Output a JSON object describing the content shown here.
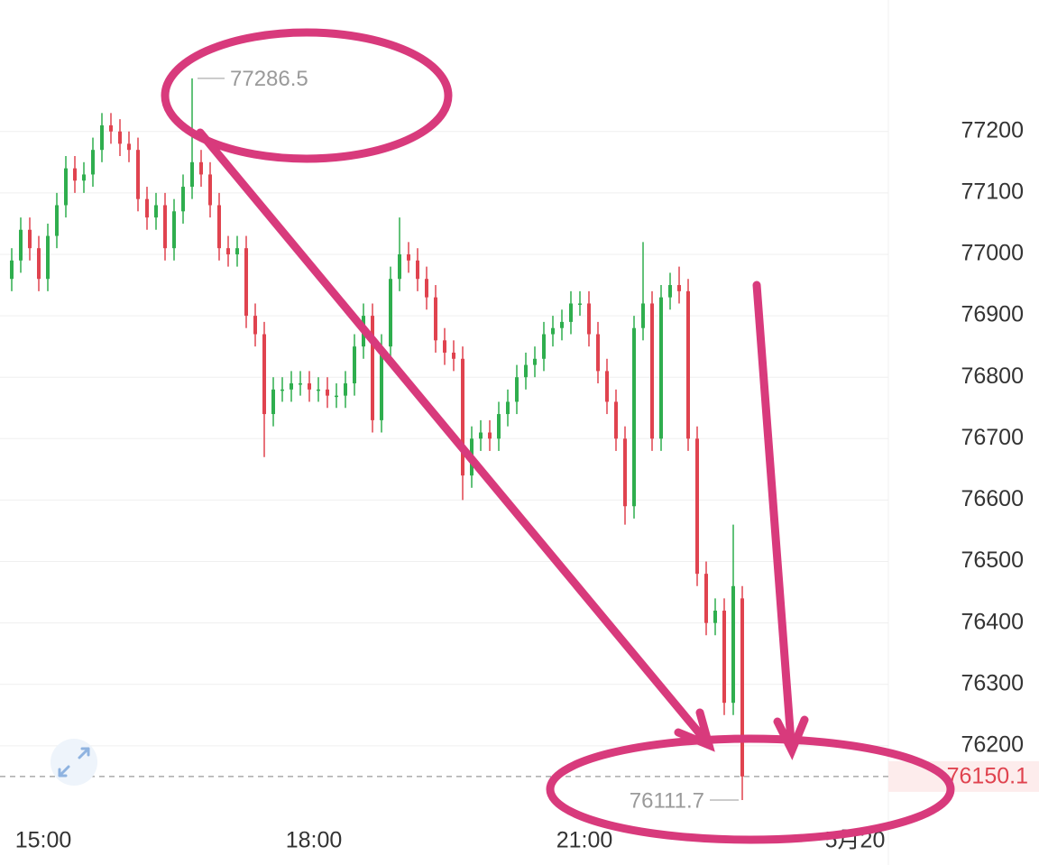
{
  "chart_data": {
    "type": "candlestick",
    "up_color": "#2fae4e",
    "down_color": "#e0434f",
    "grid": true,
    "x": [
      14.65,
      14.75,
      14.85,
      14.95,
      15.05,
      15.15,
      15.25,
      15.35,
      15.45,
      15.55,
      15.65,
      15.75,
      15.85,
      15.95,
      16.05,
      16.15,
      16.25,
      16.35,
      16.45,
      16.55,
      16.65,
      16.75,
      16.85,
      16.95,
      17.05,
      17.15,
      17.25,
      17.35,
      17.45,
      17.55,
      17.65,
      17.75,
      17.85,
      17.95,
      18.05,
      18.15,
      18.25,
      18.35,
      18.45,
      18.55,
      18.65,
      18.75,
      18.85,
      18.95,
      19.05,
      19.15,
      19.25,
      19.35,
      19.45,
      19.55,
      19.65,
      19.75,
      19.85,
      19.95,
      20.05,
      20.15,
      20.25,
      20.35,
      20.45,
      20.55,
      20.65,
      20.75,
      20.85,
      20.95,
      21.05,
      21.15,
      21.25,
      21.35,
      21.45,
      21.55,
      21.65,
      21.75,
      21.85,
      21.95,
      22.05,
      22.15,
      22.25,
      22.35,
      22.45,
      22.55,
      22.65,
      22.75
    ],
    "open": [
      76960,
      76990,
      77040,
      77010,
      76960,
      77030,
      77080,
      77140,
      77120,
      77130,
      77170,
      77210,
      77200,
      77180,
      77170,
      77090,
      77060,
      77080,
      77010,
      77070,
      77110,
      77150,
      77130,
      77080,
      77010,
      77000,
      77010,
      76900,
      76870,
      76740,
      76780,
      76780,
      76790,
      76790,
      76780,
      76780,
      76770,
      76770,
      76790,
      76850,
      76900,
      76730,
      76850,
      76960,
      77000,
      76990,
      76960,
      76930,
      76860,
      76840,
      76830,
      76640,
      76700,
      76710,
      76700,
      76740,
      76760,
      76800,
      76820,
      76830,
      76870,
      76880,
      76890,
      76920,
      76920,
      76870,
      76810,
      76760,
      76700,
      76590,
      76880,
      76920,
      76700,
      76930,
      76950,
      76940,
      76700,
      76480,
      76400,
      76420,
      76270,
      76440
    ],
    "high": [
      77010,
      77060,
      77060,
      77030,
      77050,
      77100,
      77160,
      77160,
      77150,
      77190,
      77230,
      77230,
      77220,
      77200,
      77190,
      77110,
      77100,
      77100,
      77090,
      77130,
      77286.5,
      77170,
      77150,
      77100,
      77030,
      77030,
      77030,
      76920,
      76890,
      76800,
      76800,
      76810,
      76810,
      76810,
      76800,
      76800,
      76790,
      76810,
      76870,
      76920,
      76920,
      76870,
      76980,
      77060,
      77020,
      77010,
      76980,
      76950,
      76880,
      76860,
      76850,
      76720,
      76730,
      76730,
      76760,
      76780,
      76820,
      76840,
      76850,
      76890,
      76900,
      76910,
      76940,
      76940,
      76940,
      76890,
      76830,
      76780,
      76720,
      76900,
      77020,
      76940,
      76950,
      76970,
      76980,
      76960,
      76720,
      76500,
      76440,
      76440,
      76560,
      76460
    ],
    "low": [
      76940,
      76970,
      76990,
      76940,
      76940,
      77010,
      77060,
      77100,
      77100,
      77110,
      77150,
      77180,
      77160,
      77150,
      77070,
      77040,
      77040,
      76990,
      76990,
      77050,
      77090,
      77110,
      77060,
      76990,
      76980,
      76980,
      76880,
      76850,
      76670,
      76720,
      76760,
      76760,
      76770,
      76760,
      76760,
      76750,
      76750,
      76750,
      76770,
      76830,
      76710,
      76710,
      76830,
      76940,
      76970,
      76940,
      76910,
      76840,
      76820,
      76810,
      76600,
      76620,
      76680,
      76680,
      76680,
      76720,
      76740,
      76780,
      76800,
      76810,
      76850,
      76860,
      76870,
      76900,
      76850,
      76790,
      76740,
      76680,
      76560,
      76570,
      76860,
      76680,
      76680,
      76910,
      76920,
      76680,
      76460,
      76380,
      76380,
      76250,
      76250,
      76111.7
    ],
    "close": [
      76990,
      77040,
      77010,
      76960,
      77030,
      77080,
      77140,
      77120,
      77130,
      77170,
      77210,
      77200,
      77180,
      77170,
      77090,
      77060,
      77080,
      77010,
      77070,
      77110,
      77150,
      77130,
      77080,
      77010,
      77000,
      77010,
      76900,
      76870,
      76740,
      76780,
      76780,
      76790,
      76790,
      76780,
      76780,
      76770,
      76770,
      76790,
      76850,
      76900,
      76730,
      76850,
      76960,
      77000,
      76990,
      76960,
      76930,
      76860,
      76840,
      76830,
      76640,
      76700,
      76710,
      76700,
      76740,
      76760,
      76800,
      76820,
      76830,
      76870,
      76880,
      76890,
      76920,
      76920,
      76870,
      76810,
      76760,
      76700,
      76590,
      76880,
      76920,
      76700,
      76930,
      76950,
      76940,
      76700,
      76480,
      76400,
      76420,
      76270,
      76460,
      76150.1
    ],
    "ylim": [
      76006,
      77414
    ],
    "yticks": [
      76200,
      76300,
      76400,
      76500,
      76600,
      76700,
      76800,
      76900,
      77000,
      77100,
      77200
    ],
    "xlim": [
      14.52,
      24.37
    ],
    "xticks": [
      {
        "value": 15,
        "label": "15:00"
      },
      {
        "value": 18,
        "label": "18:00"
      },
      {
        "value": 21,
        "label": "21:00"
      },
      {
        "value": 24,
        "label": "5月20"
      }
    ]
  }
}
